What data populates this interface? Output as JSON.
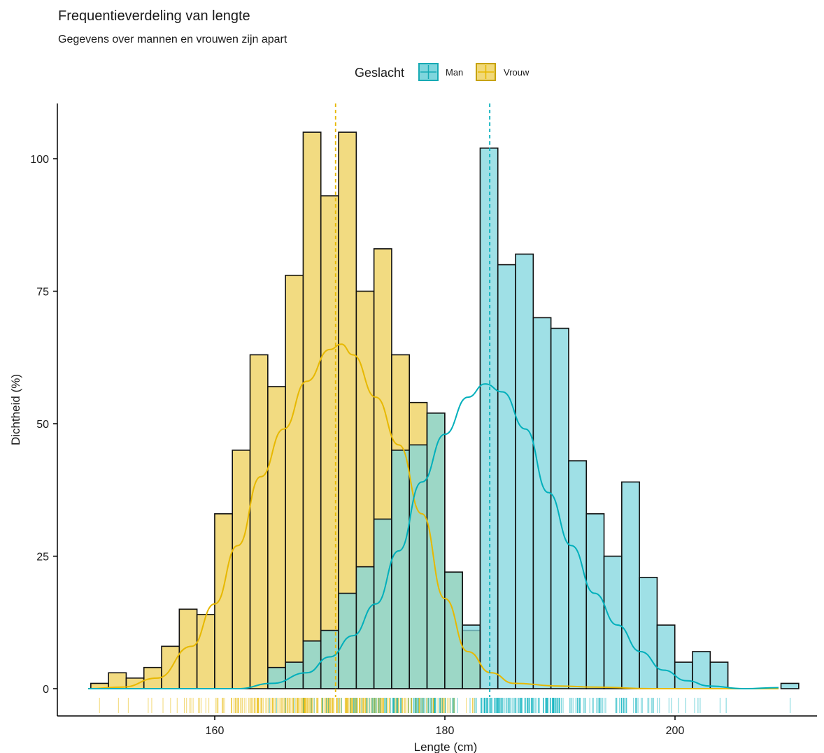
{
  "title": "Frequentieverdeling van lengte",
  "subtitle": "Gegevens over mannen en vrouwen zijn apart",
  "legend": {
    "title": "Geslacht",
    "items": [
      {
        "label": "Man",
        "fill": "#7fd6dd",
        "stroke": "#17aab4"
      },
      {
        "label": "Vrouw",
        "fill": "#f1d97a",
        "stroke": "#c7a300"
      }
    ]
  },
  "chart_data": {
    "type": "bar",
    "xlabel": "Lengte (cm)",
    "ylabel": "Dichtheid (%)",
    "xlim": [
      149,
      211
    ],
    "ylim": [
      -5,
      110
    ],
    "xticks": [
      "160",
      "180",
      "200"
    ],
    "yticks": [
      "0",
      "25",
      "50",
      "75",
      "100"
    ],
    "bin_width": 1.538,
    "bin_start": 149.23,
    "grid": false,
    "legend_position": "top",
    "series": [
      {
        "name": "Vrouw",
        "color": "#e7b800",
        "fill": "#f1d97a",
        "mean": 170.5,
        "counts": [
          1,
          3,
          2,
          4,
          8,
          15,
          14,
          33,
          45,
          63,
          57,
          78,
          105,
          93,
          105,
          75,
          83,
          63,
          54,
          52,
          22,
          11,
          0,
          0,
          0,
          0,
          0,
          0,
          0,
          0,
          0,
          0,
          0,
          0,
          0,
          0,
          0,
          0,
          0,
          0
        ]
      },
      {
        "name": "Man",
        "color": "#00afbb",
        "fill": "#7fd6dd",
        "mean": 183.9,
        "counts": [
          0,
          0,
          0,
          0,
          0,
          0,
          0,
          0,
          0,
          0,
          4,
          5,
          9,
          11,
          18,
          23,
          32,
          45,
          46,
          52,
          22,
          12,
          102,
          80,
          82,
          70,
          68,
          43,
          33,
          25,
          39,
          21,
          12,
          5,
          7,
          5,
          0,
          0,
          0,
          1
        ]
      }
    ],
    "density": {
      "Vrouw": [
        [
          149,
          0
        ],
        [
          152,
          0.3
        ],
        [
          155,
          2
        ],
        [
          158,
          8
        ],
        [
          160,
          16
        ],
        [
          162,
          27
        ],
        [
          164,
          40
        ],
        [
          166,
          49
        ],
        [
          168,
          58
        ],
        [
          170,
          64
        ],
        [
          171,
          65
        ],
        [
          172,
          63
        ],
        [
          174,
          55
        ],
        [
          176,
          46
        ],
        [
          178,
          33
        ],
        [
          180,
          17
        ],
        [
          182,
          7
        ],
        [
          184,
          3
        ],
        [
          186,
          1
        ],
        [
          190,
          0.5
        ],
        [
          193,
          0.3
        ],
        [
          198,
          0
        ],
        [
          209,
          0
        ]
      ],
      "Man": [
        [
          149,
          0
        ],
        [
          162,
          0
        ],
        [
          165,
          1
        ],
        [
          168,
          3
        ],
        [
          170,
          6
        ],
        [
          172,
          10
        ],
        [
          174,
          16
        ],
        [
          176,
          26
        ],
        [
          178,
          39
        ],
        [
          180,
          48
        ],
        [
          182,
          55
        ],
        [
          183.5,
          57.5
        ],
        [
          185,
          56
        ],
        [
          187,
          49
        ],
        [
          189,
          37
        ],
        [
          191,
          27
        ],
        [
          193,
          18
        ],
        [
          195,
          12
        ],
        [
          197,
          7
        ],
        [
          199,
          3.5
        ],
        [
          201,
          1.5
        ],
        [
          203,
          0.5
        ],
        [
          206,
          0
        ],
        [
          209,
          0.2
        ]
      ]
    }
  }
}
